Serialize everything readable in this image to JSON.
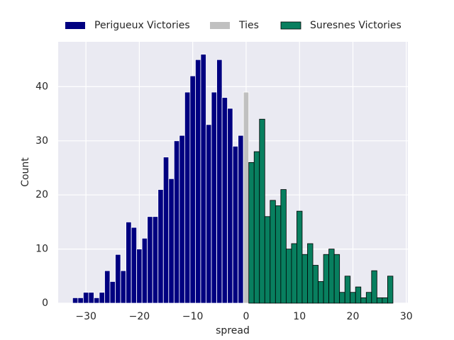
{
  "chart_data": {
    "type": "histogram",
    "xlabel": "spread",
    "ylabel": "Count",
    "xlim": [
      -35.2,
      30.3
    ],
    "ylim": [
      0,
      48.3
    ],
    "xticks": [
      {
        "value": -30,
        "label": "−30"
      },
      {
        "value": -20,
        "label": "−20"
      },
      {
        "value": -10,
        "label": "−10"
      },
      0,
      10,
      20,
      30
    ],
    "yticks": [
      0,
      10,
      20,
      30,
      40
    ],
    "grid": true,
    "legend": "top",
    "series": [
      {
        "name": "Perigueux Victories",
        "color": "#000080",
        "edgecolor": "#ffffff",
        "bins": [
          -32.5,
          -31.5,
          -30.5,
          -29.5,
          -28.5,
          -27.5,
          -26.5,
          -25.5,
          -24.5,
          -23.5,
          -22.5,
          -21.5,
          -20.5,
          -19.5,
          -18.5,
          -17.5,
          -16.5,
          -15.5,
          -14.5,
          -13.5,
          -12.5,
          -11.5,
          -10.5,
          -9.5,
          -8.5,
          -7.5,
          -6.5,
          -5.5,
          -4.5,
          -3.5,
          -2.5,
          -1.5,
          -0.5
        ],
        "values": [
          1,
          1,
          2,
          2,
          1,
          2,
          6,
          4,
          9,
          6,
          15,
          14,
          10,
          12,
          16,
          16,
          21,
          27,
          23,
          30,
          31,
          39,
          42,
          45,
          46,
          33,
          39,
          45,
          38,
          36,
          29,
          31
        ]
      },
      {
        "name": "Ties",
        "color": "#c0c0c0",
        "edgecolor": "#ffffff",
        "bins": [
          -0.5,
          0.5
        ],
        "values": [
          39
        ]
      },
      {
        "name": "Suresnes Victories",
        "color": "#087f5f",
        "edgecolor": "#000000",
        "bins": [
          0.5,
          1.5,
          2.5,
          3.5,
          4.5,
          5.5,
          6.5,
          7.5,
          8.5,
          9.5,
          10.5,
          11.5,
          12.5,
          13.5,
          14.5,
          15.5,
          16.5,
          17.5,
          18.5,
          19.5,
          20.5,
          21.5,
          22.5,
          23.5,
          24.5,
          25.5,
          26.5,
          27.5
        ],
        "values": [
          26,
          28,
          34,
          16,
          19,
          18,
          21,
          10,
          11,
          17,
          9,
          11,
          7,
          4,
          9,
          10,
          9,
          2,
          5,
          2,
          3,
          1,
          2,
          6,
          1,
          1,
          5
        ]
      }
    ]
  }
}
